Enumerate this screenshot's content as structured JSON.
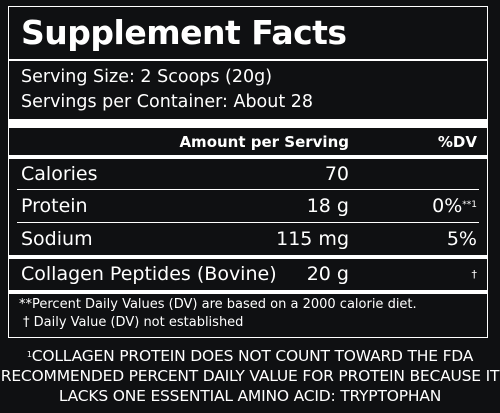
{
  "title": "Supplement Facts",
  "serving_size": "Serving Size: 2 Scoops (20g)",
  "servings_per_container": "Servings per Container: About 28",
  "header": {
    "amount": "Amount per Serving",
    "dv": "%DV"
  },
  "rows": [
    {
      "label": "Calories",
      "amount": "70",
      "dv": "",
      "dv_mark": ""
    },
    {
      "label": "Protein",
      "amount": "18 g",
      "dv": "0%",
      "dv_mark": "**1"
    },
    {
      "label": "Sodium",
      "amount": "115 mg",
      "dv": "5%",
      "dv_mark": ""
    },
    {
      "label": "Collagen Peptides (Bovine)",
      "amount": "20 g",
      "dv": "",
      "dv_mark": "†"
    }
  ],
  "footnotes": [
    "**Percent Daily Values (DV) are based on a 2000 calorie diet.",
    "† Daily Value (DV) not established"
  ],
  "bottom_note": {
    "marker": "1",
    "line1": "COLLAGEN PROTEIN DOES NOT COUNT TOWARD THE FDA",
    "line2": "RECOMMENDED PERCENT DAILY VALUE FOR PROTEIN BECAUSE IT",
    "line3": "LACKS ONE ESSENTIAL AMINO ACID: TRYPTOPHAN"
  },
  "colors": {
    "background": "#0f1012",
    "text": "#ffffff"
  }
}
